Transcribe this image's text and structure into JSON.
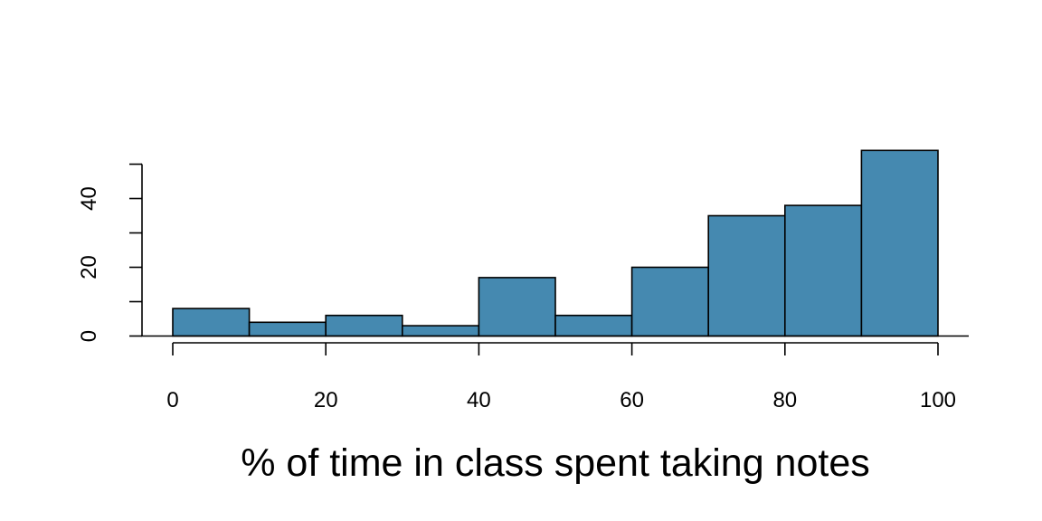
{
  "chart_data": {
    "type": "bar",
    "bin_edges": [
      0,
      10,
      20,
      30,
      40,
      50,
      60,
      70,
      80,
      90,
      100
    ],
    "values": [
      8,
      4,
      6,
      3,
      17,
      6,
      20,
      35,
      38,
      54
    ],
    "xlabel": "% of time in class spent taking notes",
    "ylabel": "",
    "xlim": [
      0,
      100
    ],
    "ylim": [
      0,
      50
    ],
    "x_ticks": [
      0,
      20,
      40,
      60,
      80,
      100
    ],
    "y_ticks": [
      0,
      10,
      20,
      30,
      40,
      50
    ],
    "y_tick_labels": [
      "0",
      "20",
      "40"
    ],
    "grid": false,
    "legend": "none",
    "bar_color": "#4589B0"
  }
}
